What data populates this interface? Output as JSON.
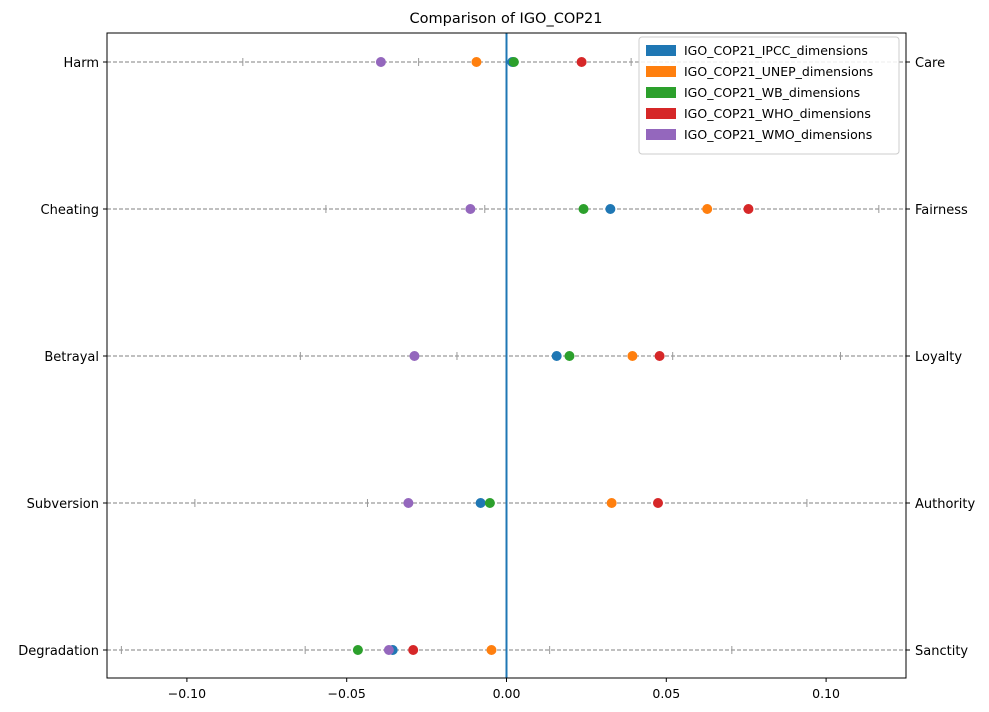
{
  "chart_data": {
    "type": "scatter",
    "title": "Comparison of IGO_COP21",
    "xlim": [
      -0.125,
      0.125
    ],
    "x_ticks": [
      -0.1,
      -0.05,
      0.0,
      0.05,
      0.1
    ],
    "x_tick_labels": [
      "−0.10",
      "−0.05",
      "0.00",
      "0.05",
      "0.10"
    ],
    "reference_line_x": 0.0,
    "reference_line_color": "#1f77b4",
    "grid": "dashed horizontal line per dimension",
    "legend_placement": "top-right",
    "dimensions": [
      {
        "left": "Harm",
        "right": "Care",
        "minor_ticks": [
          -0.0825,
          -0.0275,
          0.039
        ]
      },
      {
        "left": "Cheating",
        "right": "Fairness",
        "minor_ticks": [
          -0.0565,
          -0.0068,
          0.1165
        ]
      },
      {
        "left": "Betrayal",
        "right": "Loyalty",
        "minor_ticks": [
          -0.0645,
          -0.0155,
          0.052,
          0.1045
        ]
      },
      {
        "left": "Subversion",
        "right": "Authority",
        "minor_ticks": [
          -0.0975,
          -0.0435,
          0.094
        ]
      },
      {
        "left": "Degradation",
        "right": "Sanctity",
        "minor_ticks": [
          -0.1205,
          -0.063,
          0.0135,
          0.0705
        ]
      }
    ],
    "series": [
      {
        "name": "IGO_COP21_IPCC_dimensions",
        "color": "#1f77b4",
        "values": [
          0.0018,
          0.0325,
          0.0157,
          -0.0081,
          -0.0356
        ]
      },
      {
        "name": "IGO_COP21_UNEP_dimensions",
        "color": "#ff7f0e",
        "values": [
          -0.0094,
          0.0628,
          0.0394,
          0.0329,
          -0.0047
        ]
      },
      {
        "name": "IGO_COP21_WB_dimensions",
        "color": "#2ca02c",
        "values": [
          0.0023,
          0.0241,
          0.0197,
          -0.0052,
          -0.0465
        ]
      },
      {
        "name": "IGO_COP21_WHO_dimensions",
        "color": "#d62728",
        "values": [
          0.0235,
          0.0757,
          0.0479,
          0.0474,
          -0.0292
        ]
      },
      {
        "name": "IGO_COP21_WMO_dimensions",
        "color": "#9467bd",
        "values": [
          -0.0393,
          -0.0113,
          -0.0288,
          -0.0307,
          -0.0368
        ]
      }
    ]
  }
}
